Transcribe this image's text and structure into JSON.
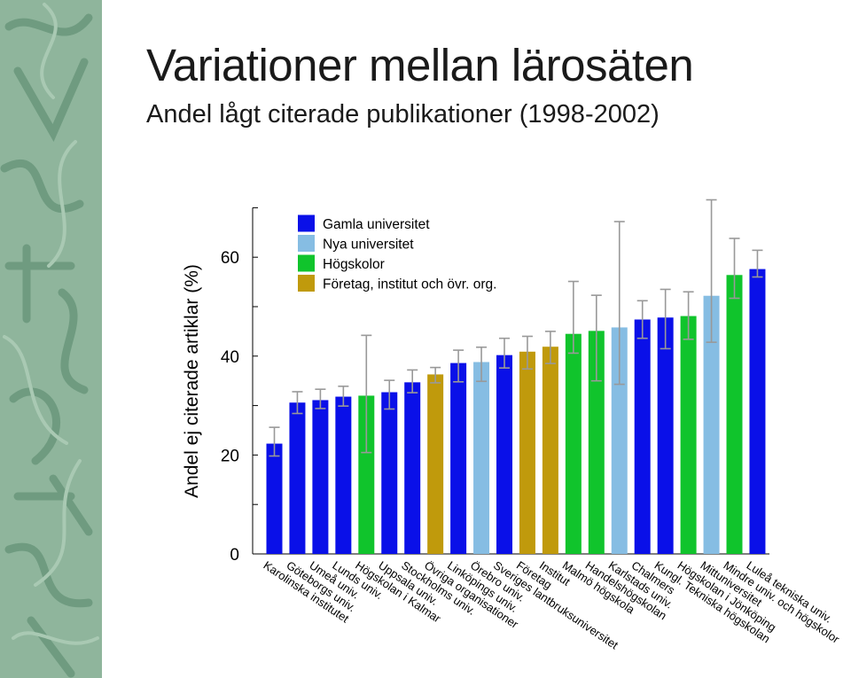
{
  "page": {
    "title": "Variationer mellan lärosäten",
    "subtitle": "Andel lågt citerade publikationer (1998-2002)"
  },
  "decoration": {
    "icon": "calligraphy-pattern-icon",
    "color": "#8fb59c"
  },
  "chart_data": {
    "type": "bar",
    "ylabel": "Andel ej citerade artiklar (%)",
    "xlabel": "",
    "ylim": [
      0,
      70
    ],
    "yticks": [
      0,
      20,
      40,
      60
    ],
    "grid": false,
    "legend_placement": "top-left",
    "error_bars": true,
    "groups": [
      {
        "name": "Gamla universitet",
        "color": "#0a10e8"
      },
      {
        "name": "Nya universitet",
        "color": "#86bde3"
      },
      {
        "name": "Högskolor",
        "color": "#10c42c"
      },
      {
        "name": "Företag, institut och övr. org.",
        "color": "#c09a0c"
      }
    ],
    "categories": [
      "Karolinska institutet",
      "Göteborgs univ.",
      "Umeå univ.",
      "Lunds univ.",
      "Högskolan i Kalmar",
      "Uppsala univ.",
      "Stockholms univ.",
      "Övriga organisationer",
      "Linköpings univ.",
      "Örebro univ.",
      "Sveriges lantbruksuniversitet",
      "Företag",
      "Institut",
      "Malmö högskola",
      "Handelshögskolan",
      "Karlstads univ.",
      "Chalmers",
      "Kungl. Tekniska högskolan",
      "Högskolan i Jönköping",
      "Mittuniversitet",
      "Mindre univ. och högskolor",
      "Luleå tekniska univ."
    ],
    "values": [
      22.3,
      30.6,
      31.1,
      31.8,
      32.0,
      32.7,
      34.7,
      36.3,
      38.6,
      38.8,
      40.2,
      40.9,
      41.9,
      44.5,
      45.1,
      45.8,
      47.4,
      47.8,
      48.1,
      52.2,
      56.4,
      57.6
    ],
    "group_index": [
      0,
      0,
      0,
      0,
      2,
      0,
      0,
      3,
      0,
      1,
      0,
      3,
      3,
      2,
      2,
      1,
      0,
      0,
      2,
      1,
      2,
      0
    ],
    "error_low": [
      19.8,
      28.4,
      29.4,
      29.9,
      20.5,
      29.3,
      32.6,
      34.6,
      34.8,
      34.9,
      37.6,
      37.4,
      38.5,
      40.6,
      35.0,
      34.3,
      43.6,
      41.5,
      43.4,
      42.8,
      51.7,
      56.0
    ],
    "error_high": [
      25.6,
      32.8,
      33.3,
      33.9,
      44.2,
      35.1,
      37.2,
      37.7,
      41.2,
      41.8,
      43.6,
      44.0,
      45.0,
      55.1,
      52.3,
      67.2,
      51.2,
      53.5,
      53.0,
      71.6,
      63.8,
      61.4
    ]
  }
}
